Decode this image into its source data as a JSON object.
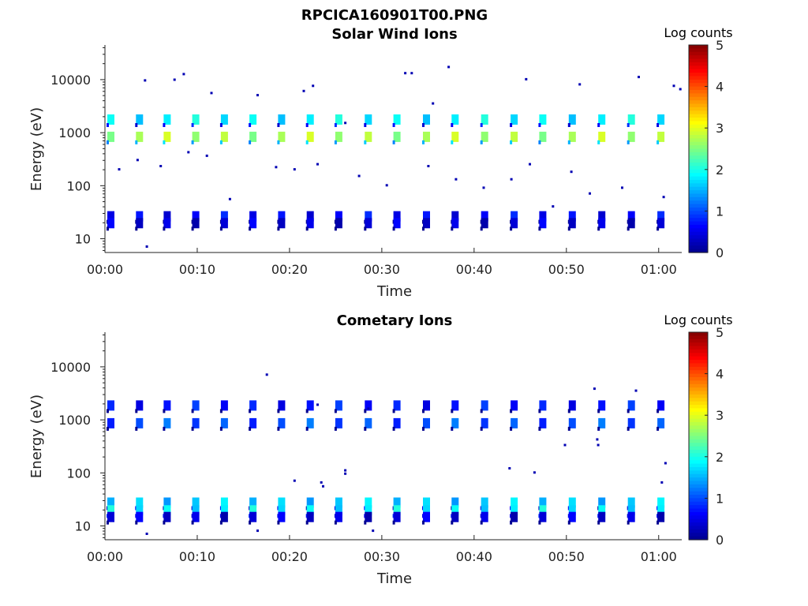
{
  "figure_title": "RPCICA160901T00.PNG",
  "colorbar_label": "Log counts",
  "colormap": [
    "#00008f",
    "#0000ff",
    "#0080ff",
    "#00ffff",
    "#80ff80",
    "#ffff00",
    "#ff8000",
    "#ff0000",
    "#800000"
  ],
  "chart_data": [
    {
      "type": "heatmap",
      "title": "Solar Wind Ions",
      "xlabel": "Time",
      "ylabel": "Energy (eV)",
      "y_scale": "log",
      "ylim": [
        5.5,
        45000
      ],
      "xlim_minutes": [
        0,
        62.5
      ],
      "x_ticks": [
        {
          "label": "00:00",
          "min": 0
        },
        {
          "label": "00:10",
          "min": 10
        },
        {
          "label": "00:20",
          "min": 20
        },
        {
          "label": "00:30",
          "min": 30
        },
        {
          "label": "00:40",
          "min": 40
        },
        {
          "label": "00:50",
          "min": 50
        },
        {
          "label": "01:00",
          "min": 60
        }
      ],
      "y_ticks": [
        {
          "label": "10",
          "v": 10
        },
        {
          "label": "100",
          "v": 100
        },
        {
          "label": "1000",
          "v": 1000
        },
        {
          "label": "10000",
          "v": 10000
        }
      ],
      "colorbar": {
        "min": 0,
        "max": 5,
        "ticks": [
          "0",
          "1",
          "2",
          "3",
          "4",
          "5"
        ],
        "label": "Log counts"
      },
      "sweep_minutes": [
        0.6,
        3.7,
        6.7,
        9.8,
        12.9,
        16.0,
        19.1,
        22.2,
        25.3,
        28.5,
        31.6,
        34.8,
        37.9,
        41.1,
        44.3,
        47.4,
        50.6,
        53.8,
        57.0,
        60.2
      ],
      "bands": [
        {
          "energy": 850,
          "log_counts": 2.7
        },
        {
          "energy": 1800,
          "log_counts": 1.8
        },
        {
          "energy": 27,
          "log_counts": 0.6
        },
        {
          "energy": 20,
          "log_counts": 0.4
        }
      ],
      "sparse_points": [
        {
          "t": 4.3,
          "e": 9500
        },
        {
          "t": 7.5,
          "e": 9800
        },
        {
          "t": 8.5,
          "e": 12500
        },
        {
          "t": 11.5,
          "e": 5500
        },
        {
          "t": 16.5,
          "e": 5000
        },
        {
          "t": 21.5,
          "e": 6000
        },
        {
          "t": 22.5,
          "e": 7500
        },
        {
          "t": 32.5,
          "e": 13000
        },
        {
          "t": 33.2,
          "e": 13000
        },
        {
          "t": 37.2,
          "e": 17000
        },
        {
          "t": 45.6,
          "e": 10000
        },
        {
          "t": 51.4,
          "e": 8000
        },
        {
          "t": 57.8,
          "e": 11000
        },
        {
          "t": 61.6,
          "e": 7500
        },
        {
          "t": 62.3,
          "e": 6500
        },
        {
          "t": 3.5,
          "e": 300
        },
        {
          "t": 6.0,
          "e": 230
        },
        {
          "t": 9.0,
          "e": 420
        },
        {
          "t": 11.0,
          "e": 360
        },
        {
          "t": 18.5,
          "e": 220
        },
        {
          "t": 20.5,
          "e": 200
        },
        {
          "t": 23.0,
          "e": 250
        },
        {
          "t": 27.5,
          "e": 150
        },
        {
          "t": 35.0,
          "e": 230
        },
        {
          "t": 38.0,
          "e": 130
        },
        {
          "t": 44.0,
          "e": 130
        },
        {
          "t": 46.0,
          "e": 250
        },
        {
          "t": 50.5,
          "e": 180
        },
        {
          "t": 52.5,
          "e": 70
        },
        {
          "t": 56.0,
          "e": 90
        },
        {
          "t": 60.5,
          "e": 60
        },
        {
          "t": 1.5,
          "e": 200
        },
        {
          "t": 13.5,
          "e": 55
        },
        {
          "t": 30.5,
          "e": 100
        },
        {
          "t": 41.0,
          "e": 90
        },
        {
          "t": 4.5,
          "e": 7
        },
        {
          "t": 48.5,
          "e": 40
        },
        {
          "t": 26.0,
          "e": 1500
        },
        {
          "t": 35.5,
          "e": 3500
        }
      ]
    },
    {
      "type": "heatmap",
      "title": "Cometary Ions",
      "xlabel": "Time",
      "ylabel": "Energy (eV)",
      "y_scale": "log",
      "ylim": [
        5.5,
        45000
      ],
      "xlim_minutes": [
        0,
        62.5
      ],
      "x_ticks": [
        {
          "label": "00:00",
          "min": 0
        },
        {
          "label": "00:10",
          "min": 10
        },
        {
          "label": "00:20",
          "min": 20
        },
        {
          "label": "00:30",
          "min": 30
        },
        {
          "label": "00:40",
          "min": 40
        },
        {
          "label": "00:50",
          "min": 50
        },
        {
          "label": "01:00",
          "min": 60
        }
      ],
      "y_ticks": [
        {
          "label": "10",
          "v": 10
        },
        {
          "label": "100",
          "v": 100
        },
        {
          "label": "1000",
          "v": 1000
        },
        {
          "label": "10000",
          "v": 10000
        }
      ],
      "colorbar": {
        "min": 0,
        "max": 5,
        "ticks": [
          "0",
          "1",
          "2",
          "3",
          "4",
          "5"
        ],
        "label": "Log counts"
      },
      "sweep_minutes": [
        0.6,
        3.7,
        6.7,
        9.8,
        12.9,
        16.0,
        19.1,
        22.2,
        25.3,
        28.5,
        31.6,
        34.8,
        37.9,
        41.1,
        44.3,
        47.4,
        50.6,
        53.8,
        57.0,
        60.2
      ],
      "bands": [
        {
          "energy": 880,
          "log_counts": 1.0
        },
        {
          "energy": 1900,
          "log_counts": 0.7
        },
        {
          "energy": 28,
          "log_counts": 1.6
        },
        {
          "energy": 20,
          "log_counts": 1.8
        },
        {
          "energy": 15,
          "log_counts": 0.4
        }
      ],
      "sparse_points": [
        {
          "t": 17.5,
          "e": 7000
        },
        {
          "t": 23.0,
          "e": 1900
        },
        {
          "t": 28.5,
          "e": 1600
        },
        {
          "t": 53.0,
          "e": 3800
        },
        {
          "t": 57.5,
          "e": 3500
        },
        {
          "t": 20.5,
          "e": 70
        },
        {
          "t": 23.4,
          "e": 65
        },
        {
          "t": 23.6,
          "e": 55
        },
        {
          "t": 26.0,
          "e": 110
        },
        {
          "t": 26.0,
          "e": 95
        },
        {
          "t": 43.8,
          "e": 120
        },
        {
          "t": 46.5,
          "e": 100
        },
        {
          "t": 49.8,
          "e": 330
        },
        {
          "t": 53.3,
          "e": 420
        },
        {
          "t": 53.4,
          "e": 330
        },
        {
          "t": 60.7,
          "e": 150
        },
        {
          "t": 60.3,
          "e": 65
        },
        {
          "t": 4.5,
          "e": 7
        },
        {
          "t": 16.5,
          "e": 8
        },
        {
          "t": 29.0,
          "e": 8
        }
      ]
    }
  ]
}
